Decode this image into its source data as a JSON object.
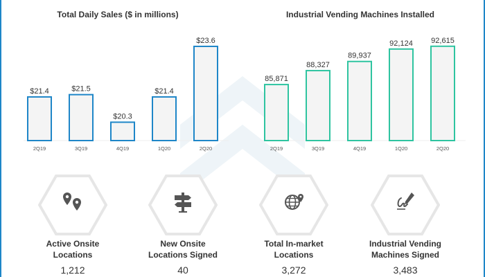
{
  "colors": {
    "blue": "#1e86c8",
    "green": "#2ec4a0",
    "bar_fill": "#f4f4f4",
    "hex": "#e6e6e6",
    "icon": "#555555"
  },
  "chart_data": [
    {
      "type": "bar",
      "title": "Total Daily Sales ($ in millions)",
      "categories": [
        "2Q19",
        "3Q19",
        "4Q19",
        "1Q20",
        "2Q20"
      ],
      "values": [
        21.4,
        21.5,
        20.3,
        21.4,
        23.6
      ],
      "value_labels": [
        "$21.4",
        "$21.5",
        "$20.3",
        "$21.4",
        "$23.6"
      ],
      "ylim": [
        19.5,
        23.75
      ],
      "color": "#1e86c8"
    },
    {
      "type": "bar",
      "title": "Industrial Vending Machines Installed",
      "categories": [
        "2Q19",
        "3Q19",
        "4Q19",
        "1Q20",
        "2Q20"
      ],
      "values": [
        85871,
        88327,
        89937,
        92124,
        92615
      ],
      "value_labels": [
        "85,871",
        "88,327",
        "89,937",
        "92,124",
        "92,615"
      ],
      "ylim": [
        76000,
        93200
      ],
      "color": "#2ec4a0"
    }
  ],
  "stats": [
    {
      "label": "Active Onsite Locations",
      "value": "1,212",
      "icon": "map-pins-icon"
    },
    {
      "label": "New Onsite Locations Signed",
      "value": "40",
      "icon": "signpost-icon"
    },
    {
      "label": "Total In-market Locations",
      "value": "3,272",
      "icon": "globe-pin-icon"
    },
    {
      "label": "Industrial Vending Machines Signed",
      "value": "3,483",
      "icon": "signature-icon"
    }
  ]
}
